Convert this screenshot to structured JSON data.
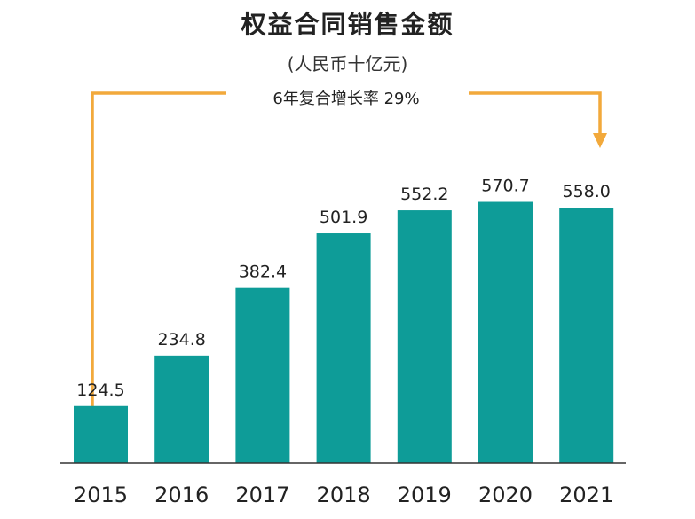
{
  "title": "权益合同销售金额",
  "subtitle": "(人民币十亿元)",
  "cagr_label": "6年复合增长率 29%",
  "colors": {
    "bar": "#0e9c98",
    "arrow": "#f2a93b",
    "axis": "#333333"
  },
  "chart_data": {
    "type": "bar",
    "title": "权益合同销售金额",
    "subtitle": "(人民币十亿元)",
    "categories": [
      "2015",
      "2016",
      "2017",
      "2018",
      "2019",
      "2020",
      "2021"
    ],
    "values": [
      124.5,
      234.8,
      382.4,
      501.9,
      552.2,
      570.7,
      558.0
    ],
    "value_labels": [
      "124.5",
      "234.8",
      "382.4",
      "501.9",
      "552.2",
      "570.7",
      "558.0"
    ],
    "xlabel": "",
    "ylabel": "",
    "ylim": [
      0,
      600
    ],
    "grid": false,
    "legend": "none",
    "annotation": "6年复合增长率 29%"
  }
}
